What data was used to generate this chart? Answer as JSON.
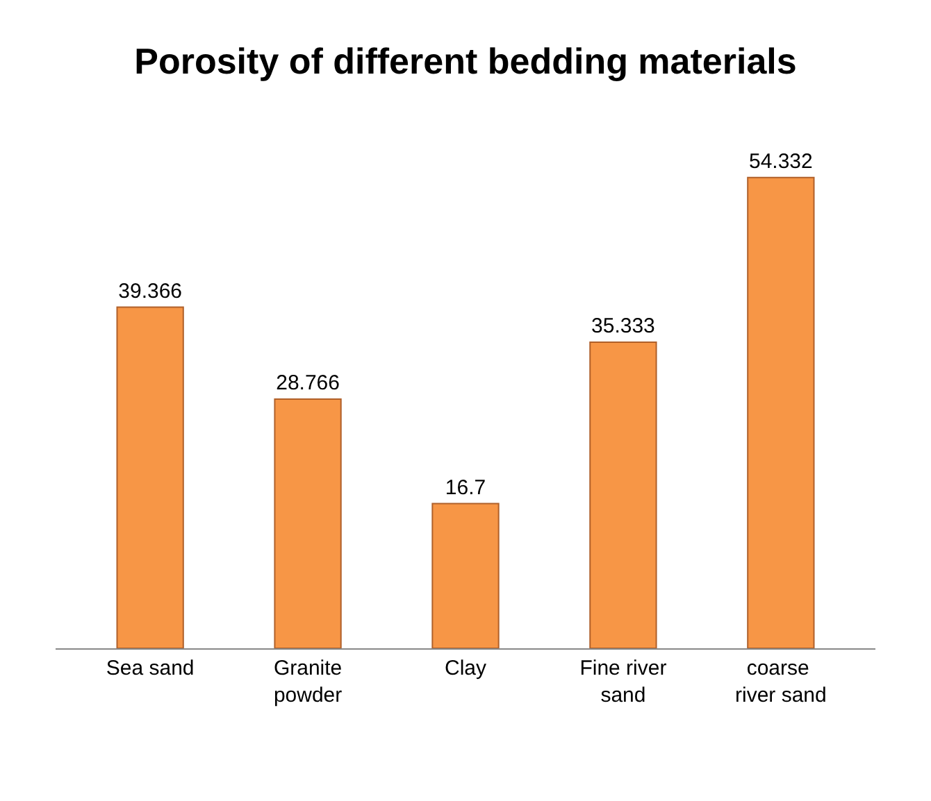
{
  "chart_data": {
    "type": "bar",
    "title": "Porosity of different bedding materials",
    "categories": [
      "Sea sand",
      "Granite powder",
      "Clay",
      "Fine river sand",
      "coarse  river sand"
    ],
    "values": [
      39.366,
      28.766,
      16.7,
      35.333,
      54.332
    ],
    "color": "#f79646",
    "data_labels": true
  }
}
